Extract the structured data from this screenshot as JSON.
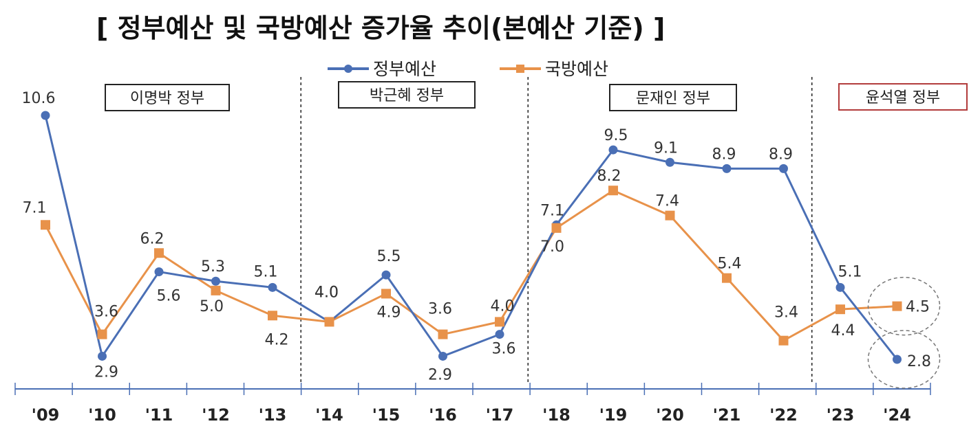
{
  "chart_data": {
    "type": "line",
    "title": "[ 정부예산 및 국방예산 증가율 추이(본예산 기준) ]",
    "categories": [
      "'09",
      "'10",
      "'11",
      "'12",
      "'13",
      "'14",
      "'15",
      "'16",
      "'17",
      "'18",
      "'19",
      "'20",
      "'21",
      "'22",
      "'23",
      "'24"
    ],
    "series": [
      {
        "name": "정부예산",
        "color": "#4a6fb5",
        "marker": "circle",
        "values": [
          10.6,
          2.9,
          5.6,
          5.3,
          5.1,
          4.0,
          5.5,
          2.9,
          3.6,
          7.1,
          9.5,
          9.1,
          8.9,
          8.9,
          5.1,
          2.8
        ],
        "labels": [
          "10.6",
          "2.9",
          "5.6",
          "5.3",
          "5.1",
          "4.0",
          "5.5",
          "2.9",
          "3.6",
          "7.1",
          "9.5",
          "9.1",
          "8.9",
          "8.9",
          "5.1",
          "2.8"
        ]
      },
      {
        "name": "국방예산",
        "color": "#e8924a",
        "marker": "square",
        "values": [
          7.1,
          3.6,
          6.2,
          5.0,
          4.2,
          4.0,
          4.9,
          3.6,
          4.0,
          7.0,
          8.2,
          7.4,
          5.4,
          3.4,
          4.4,
          4.5
        ],
        "labels": [
          "7.1",
          "3.6",
          "6.2",
          "5.0",
          "4.2",
          "4.0",
          "4.9",
          "3.6",
          "4.0",
          "7.0",
          "8.2",
          "7.4",
          "5.4",
          "3.4",
          "4.4",
          "4.5"
        ]
      }
    ],
    "periods": [
      {
        "label": "이명박 정부",
        "start": 0,
        "end": 4
      },
      {
        "label": "박근혜 정부",
        "start": 5,
        "end": 8
      },
      {
        "label": "문재인 정부",
        "start": 9,
        "end": 13
      },
      {
        "label": "윤석열 정부",
        "start": 14,
        "end": 15
      }
    ],
    "ylim": [
      2.0,
      11.0
    ],
    "grid": false,
    "legend_position": "top-center",
    "highlighted_points": [
      {
        "series": 0,
        "index": 15
      },
      {
        "series": 1,
        "index": 15
      }
    ]
  }
}
